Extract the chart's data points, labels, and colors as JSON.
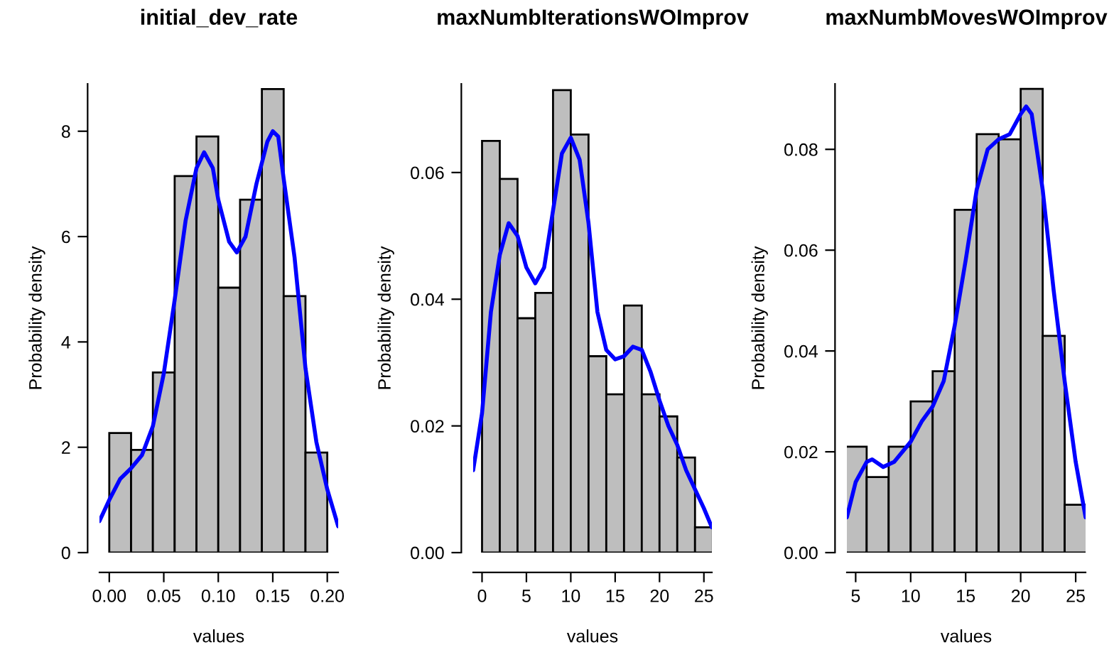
{
  "chart_data": [
    {
      "type": "histogram",
      "title": "initial_dev_rate",
      "xlabel": "values",
      "ylabel": "Probability density",
      "color": "#bebebe",
      "bins": [
        0,
        0.02,
        0.04,
        0.06,
        0.08,
        0.1,
        0.12,
        0.14,
        0.16,
        0.18,
        0.2
      ],
      "values": [
        2.27,
        1.95,
        3.42,
        7.15,
        7.9,
        5.03,
        6.7,
        8.8,
        4.87,
        1.9
      ],
      "series": [
        {
          "type": "line",
          "color": "#0000ff",
          "x": [
            -0.009,
            0,
            0.01,
            0.02,
            0.03,
            0.04,
            0.05,
            0.06,
            0.07,
            0.08,
            0.087,
            0.095,
            0.1,
            0.11,
            0.117,
            0.125,
            0.135,
            0.145,
            0.15,
            0.155,
            0.16,
            0.17,
            0.18,
            0.19,
            0.2,
            0.21
          ],
          "values": [
            0.6,
            1.0,
            1.4,
            1.6,
            1.85,
            2.4,
            3.4,
            4.8,
            6.3,
            7.3,
            7.6,
            7.3,
            6.7,
            5.9,
            5.7,
            6.0,
            7.0,
            7.8,
            8.0,
            7.9,
            7.1,
            5.6,
            3.5,
            2.1,
            1.2,
            0.5
          ]
        }
      ],
      "xlim": [
        -0.009,
        0.21
      ],
      "ylim": [
        0,
        8.9
      ],
      "xticks": [
        {
          "value": 0,
          "label": "0.00"
        },
        0.05,
        {
          "value": 0.1,
          "label": "0.10"
        },
        0.15,
        {
          "value": 0.2,
          "label": "0.20"
        }
      ],
      "yticks": [
        0,
        2,
        4,
        6,
        8
      ],
      "grid": false
    },
    {
      "type": "histogram",
      "title": "maxNumbIterationsWOImprov",
      "xlabel": "values",
      "ylabel": "Probability density",
      "color": "#bebebe",
      "bins": [
        0,
        2,
        4,
        6,
        8,
        10,
        12,
        14,
        16,
        18,
        20,
        22,
        24,
        26
      ],
      "values": [
        0.065,
        0.059,
        0.037,
        0.041,
        0.073,
        0.066,
        0.031,
        0.025,
        0.039,
        0.025,
        0.0215,
        0.015,
        0.004
      ],
      "series": [
        {
          "type": "line",
          "color": "#0000ff",
          "x": [
            -1,
            0,
            1,
            2,
            3,
            4,
            5,
            6,
            7,
            8,
            9,
            10,
            11,
            12,
            13,
            14,
            15,
            16,
            17,
            18,
            19,
            20,
            21,
            22,
            23,
            24,
            25,
            25.9
          ],
          "values": [
            0.013,
            0.022,
            0.038,
            0.047,
            0.052,
            0.05,
            0.045,
            0.0425,
            0.045,
            0.054,
            0.063,
            0.0655,
            0.062,
            0.052,
            0.038,
            0.032,
            0.0305,
            0.031,
            0.0325,
            0.032,
            0.0285,
            0.024,
            0.02,
            0.017,
            0.013,
            0.01,
            0.007,
            0.004
          ]
        }
      ],
      "xlim": [
        -1,
        25.9
      ],
      "ylim": [
        0,
        0.074
      ],
      "xticks": [
        0,
        5,
        10,
        15,
        20,
        25
      ],
      "yticks": [
        {
          "value": 0,
          "label": "0.00"
        },
        0.02,
        0.04,
        0.06
      ],
      "grid": false
    },
    {
      "type": "histogram",
      "title": "maxNumbMovesWOImprov",
      "xlabel": "values",
      "ylabel": "Probability density",
      "color": "#bebebe",
      "bins": [
        4,
        6,
        8,
        10,
        12,
        14,
        16,
        18,
        20,
        22,
        24,
        26
      ],
      "values": [
        0.021,
        0.015,
        0.021,
        0.03,
        0.036,
        0.068,
        0.083,
        0.082,
        0.092,
        0.043,
        0.0095
      ],
      "series": [
        {
          "type": "line",
          "color": "#0000ff",
          "x": [
            4.2,
            5,
            6,
            6.5,
            7.5,
            8.5,
            10,
            11,
            12,
            13,
            14,
            15,
            16,
            17,
            18,
            19,
            20,
            20.5,
            21,
            22,
            23,
            24,
            25,
            25.9
          ],
          "values": [
            0.007,
            0.014,
            0.018,
            0.0185,
            0.017,
            0.018,
            0.022,
            0.026,
            0.029,
            0.034,
            0.045,
            0.058,
            0.072,
            0.08,
            0.082,
            0.083,
            0.087,
            0.0885,
            0.087,
            0.072,
            0.052,
            0.034,
            0.018,
            0.007
          ]
        }
      ],
      "xlim": [
        4.2,
        25.9
      ],
      "ylim": [
        0,
        0.093
      ],
      "xticks": [
        5,
        10,
        15,
        20,
        25
      ],
      "yticks": [
        {
          "value": 0,
          "label": "0.00"
        },
        0.02,
        0.04,
        0.06,
        0.08
      ],
      "grid": false
    }
  ]
}
